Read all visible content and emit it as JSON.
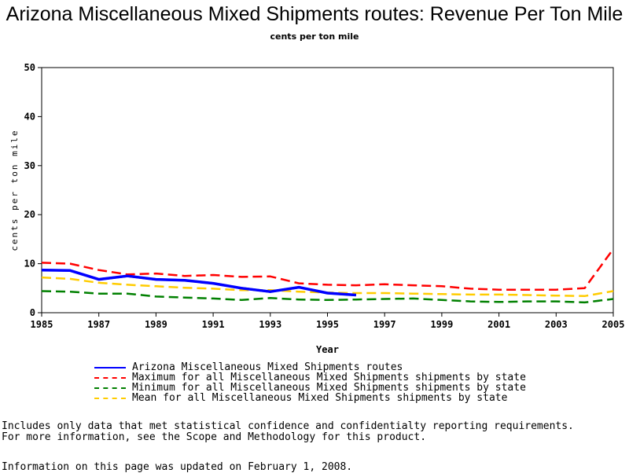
{
  "chart_data": {
    "type": "line",
    "title": "Arizona Miscellaneous Mixed Shipments routes: Revenue Per Ton Mile",
    "subtitle": "cents per ton mile",
    "xlabel": "Year",
    "ylabel": "cents per ton mile",
    "xlim": [
      1985,
      2005
    ],
    "ylim": [
      0,
      50
    ],
    "x_ticks": [
      "1985",
      "1987",
      "1989",
      "1991",
      "1993",
      "1995",
      "1997",
      "1999",
      "2001",
      "2003",
      "2005"
    ],
    "y_ticks": [
      "0",
      "10",
      "20",
      "30",
      "40",
      "50"
    ],
    "grid": false,
    "legend_position": "bottom-left",
    "series": [
      {
        "name": "Arizona Miscellaneous Mixed Shipments routes",
        "color": "#0000ff",
        "style": "solid",
        "x": [
          1985,
          1986,
          1987,
          1988,
          1989,
          1990,
          1991,
          1992,
          1993,
          1994,
          1995,
          1996
        ],
        "y": [
          8.7,
          8.6,
          6.8,
          7.5,
          6.8,
          6.6,
          6.0,
          5.0,
          4.3,
          5.2,
          4.0,
          3.6
        ]
      },
      {
        "name": "Maximum for all Miscellaneous Mixed Shipments shipments by state",
        "color": "#ff0000",
        "style": "dashed",
        "x": [
          1985,
          1986,
          1987,
          1988,
          1989,
          1990,
          1991,
          1992,
          1993,
          1994,
          1995,
          1996,
          1997,
          1998,
          1999,
          2000,
          2001,
          2002,
          2003,
          2004,
          2005
        ],
        "y": [
          10.2,
          10.0,
          8.7,
          7.8,
          8.0,
          7.5,
          7.7,
          7.3,
          7.4,
          6.0,
          5.7,
          5.6,
          5.8,
          5.6,
          5.4,
          4.9,
          4.7,
          4.7,
          4.7,
          5.0,
          13.0
        ]
      },
      {
        "name": "Minimum for all Miscellaneous Mixed Shipments shipments by state",
        "color": "#008000",
        "style": "dashed",
        "x": [
          1985,
          1986,
          1987,
          1988,
          1989,
          1990,
          1991,
          1992,
          1993,
          1994,
          1995,
          1996,
          1997,
          1998,
          1999,
          2000,
          2001,
          2002,
          2003,
          2004,
          2005
        ],
        "y": [
          4.4,
          4.3,
          3.9,
          3.9,
          3.3,
          3.1,
          2.9,
          2.6,
          3.0,
          2.7,
          2.6,
          2.7,
          2.8,
          2.9,
          2.6,
          2.3,
          2.2,
          2.3,
          2.3,
          2.1,
          2.8
        ]
      },
      {
        "name": "Mean for all Miscellaneous Mixed Shipments shipments by state",
        "color": "#ffcc00",
        "style": "dashed",
        "x": [
          1985,
          1986,
          1987,
          1988,
          1989,
          1990,
          1991,
          1992,
          1993,
          1994,
          1995,
          1996,
          1997,
          1998,
          1999,
          2000,
          2001,
          2002,
          2003,
          2004,
          2005
        ],
        "y": [
          7.2,
          6.9,
          6.1,
          5.7,
          5.4,
          5.1,
          4.9,
          4.6,
          4.6,
          4.3,
          4.1,
          4.0,
          4.0,
          3.9,
          3.8,
          3.7,
          3.7,
          3.6,
          3.5,
          3.4,
          4.4
        ]
      }
    ]
  },
  "notes": [
    "Includes only data that met statistical confidence and confidentialty reporting requirements.",
    "For more information, see the Scope and Methodology for this product."
  ],
  "updated": "Information on this page was updated on February 1, 2008."
}
